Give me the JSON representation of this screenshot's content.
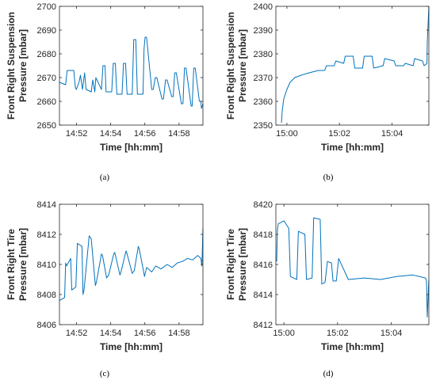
{
  "colors": {
    "series": "#0072BD",
    "axis": "#262626"
  },
  "chart_data": [
    {
      "id": "a",
      "type": "line",
      "caption": "(a)",
      "xlabel": "Time [hh:mm]",
      "ylabel_lines": [
        "Front Right Suspension",
        "Pressure [mbar]"
      ],
      "xlim": [
        14.85,
        14.99
      ],
      "ylim": [
        2650,
        2700
      ],
      "xticks": [
        {
          "v": 14.8667,
          "label": "14:52"
        },
        {
          "v": 14.9,
          "label": "14:54"
        },
        {
          "v": 14.9333,
          "label": "14:56"
        },
        {
          "v": 14.9667,
          "label": "14:58"
        }
      ],
      "yticks": [
        {
          "v": 2650,
          "label": "2650"
        },
        {
          "v": 2660,
          "label": "2660"
        },
        {
          "v": 2670,
          "label": "2670"
        },
        {
          "v": 2680,
          "label": "2680"
        },
        {
          "v": 2690,
          "label": "2690"
        },
        {
          "v": 2700,
          "label": "2700"
        }
      ],
      "series": [
        {
          "x": [
            14.85,
            14.856,
            14.8575,
            14.864,
            14.8655,
            14.8665,
            14.869,
            14.8705,
            14.8725,
            14.8745,
            14.876,
            14.881,
            14.8825,
            14.8845,
            14.8855,
            14.891,
            14.8925,
            14.8945,
            14.8955,
            14.901,
            14.9025,
            14.9045,
            14.906,
            14.911,
            14.9125,
            14.9145,
            14.916,
            14.921,
            14.9225,
            14.9245,
            14.926,
            14.9315,
            14.9325,
            14.9335,
            14.935,
            14.94,
            14.9415,
            14.9435,
            14.945,
            14.95,
            14.9515,
            14.9535,
            14.955,
            14.9595,
            14.961,
            14.9625,
            14.964,
            14.969,
            14.9705,
            14.972,
            14.9735,
            14.9785,
            14.9795,
            14.981,
            14.9825,
            14.9865,
            14.988,
            14.9885,
            14.99
          ],
          "y": [
            2668,
            2667,
            2673,
            2673,
            2666,
            2665,
            2668,
            2671,
            2665,
            2672,
            2665,
            2664,
            2669,
            2664,
            2670,
            2665,
            2675,
            2675,
            2664,
            2664,
            2676,
            2676,
            2663,
            2663,
            2676,
            2676,
            2663,
            2663,
            2686,
            2686,
            2663,
            2663,
            2682,
            2687,
            2687,
            2665,
            2665,
            2670,
            2670,
            2661,
            2661,
            2669,
            2669,
            2662,
            2662,
            2672,
            2672,
            2659,
            2659,
            2674,
            2674,
            2658,
            2658,
            2674,
            2674,
            2660,
            2660,
            2657,
            2659
          ]
        }
      ]
    },
    {
      "id": "b",
      "type": "line",
      "caption": "(b)",
      "xlabel": "Time [hh:mm]",
      "ylabel_lines": [
        "Front Right Suspension",
        "Pressure [mbar]"
      ],
      "xlim": [
        14.993,
        15.09
      ],
      "ylim": [
        2350,
        2400
      ],
      "xticks": [
        {
          "v": 15.0,
          "label": "15:00"
        },
        {
          "v": 15.0333,
          "label": "15:02"
        },
        {
          "v": 15.0667,
          "label": "15:04"
        }
      ],
      "yticks": [
        {
          "v": 2350,
          "label": "2350"
        },
        {
          "v": 2360,
          "label": "2360"
        },
        {
          "v": 2370,
          "label": "2370"
        },
        {
          "v": 2380,
          "label": "2380"
        },
        {
          "v": 2390,
          "label": "2390"
        },
        {
          "v": 2400,
          "label": "2400"
        }
      ],
      "series": [
        {
          "x": [
            14.9965,
            14.997,
            14.998,
            15.0,
            15.002,
            15.005,
            15.009,
            15.014,
            15.02,
            15.024,
            15.025,
            15.03,
            15.031,
            15.036,
            15.037,
            15.042,
            15.043,
            15.048,
            15.049,
            15.054,
            15.055,
            15.061,
            15.062,
            15.068,
            15.069,
            15.074,
            15.075,
            15.08,
            15.081,
            15.086,
            15.087,
            15.0888,
            15.089,
            15.09
          ],
          "y": [
            2351,
            2356,
            2361,
            2365,
            2368,
            2370,
            2371,
            2372,
            2373,
            2373,
            2375,
            2375,
            2377,
            2376,
            2379,
            2379,
            2374,
            2374,
            2379,
            2379,
            2374,
            2375,
            2378,
            2377,
            2375,
            2375,
            2376,
            2375,
            2378,
            2377,
            2375,
            2376,
            2385,
            2400
          ]
        }
      ]
    },
    {
      "id": "c",
      "type": "line",
      "caption": "(c)",
      "xlabel": "Time [hh:mm]",
      "ylabel_lines": [
        "Front Right Tire",
        "Pressure [mbar]"
      ],
      "xlim": [
        14.85,
        14.99
      ],
      "ylim": [
        8406,
        8414
      ],
      "xticks": [
        {
          "v": 14.8667,
          "label": "14:52"
        },
        {
          "v": 14.9,
          "label": "14:54"
        },
        {
          "v": 14.9333,
          "label": "14:56"
        },
        {
          "v": 14.9667,
          "label": "14:58"
        }
      ],
      "yticks": [
        {
          "v": 8406,
          "label": "8406"
        },
        {
          "v": 8408,
          "label": "8408"
        },
        {
          "v": 8410,
          "label": "8410"
        },
        {
          "v": 8412,
          "label": "8412"
        },
        {
          "v": 8414,
          "label": "8414"
        }
      ],
      "series": [
        {
          "x": [
            14.85,
            14.855,
            14.856,
            14.857,
            14.861,
            14.862,
            14.866,
            14.8675,
            14.872,
            14.873,
            14.874,
            14.879,
            14.881,
            14.885,
            14.886,
            14.891,
            14.892,
            14.896,
            14.898,
            14.903,
            14.904,
            14.909,
            14.91,
            14.915,
            14.916,
            14.921,
            14.923,
            14.927,
            14.928,
            14.933,
            14.935,
            14.94,
            14.944,
            14.949,
            14.955,
            14.96,
            14.965,
            14.97,
            14.975,
            14.98,
            14.985,
            14.988,
            14.989,
            14.99
          ],
          "y": [
            8407.6,
            8407.8,
            8410.1,
            8409.9,
            8410.4,
            8408.3,
            8408.5,
            8411.4,
            8411.2,
            8408.0,
            8408.3,
            8411.9,
            8411.7,
            8408.6,
            8408.8,
            8410.7,
            8410.6,
            8409.1,
            8409.3,
            8410.7,
            8410.8,
            8409.3,
            8409.5,
            8410.9,
            8410.7,
            8409.4,
            8409.6,
            8411.2,
            8411.0,
            8409.2,
            8409.8,
            8409.5,
            8409.9,
            8409.7,
            8410.0,
            8409.8,
            8410.1,
            8410.2,
            8410.4,
            8410.3,
            8410.6,
            8410.4,
            8409.9,
            8412.4
          ]
        }
      ]
    },
    {
      "id": "d",
      "type": "line",
      "caption": "(d)",
      "xlabel": "Time [hh:mm]",
      "ylabel_lines": [
        "Front Right Tire",
        "Pressure [mbar]"
      ],
      "xlim": [
        14.995,
        15.09
      ],
      "ylim": [
        8412,
        8420
      ],
      "xticks": [
        {
          "v": 15.0,
          "label": "15:00"
        },
        {
          "v": 15.0333,
          "label": "15:02"
        },
        {
          "v": 15.0667,
          "label": "15:04"
        }
      ],
      "yticks": [
        {
          "v": 8412,
          "label": "8412"
        },
        {
          "v": 8414,
          "label": "8414"
        },
        {
          "v": 8416,
          "label": "8416"
        },
        {
          "v": 8418,
          "label": "8418"
        },
        {
          "v": 8420,
          "label": "8420"
        }
      ],
      "series": [
        {
          "x": [
            14.9955,
            14.996,
            14.9965,
            15.0,
            15.003,
            15.004,
            15.008,
            15.009,
            15.013,
            15.014,
            15.0175,
            15.0185,
            15.0225,
            15.0235,
            15.0255,
            15.027,
            15.0295,
            15.0305,
            15.0325,
            15.034,
            15.04,
            15.05,
            15.06,
            15.07,
            15.08,
            15.088,
            15.0885,
            15.089,
            15.09
          ],
          "y": [
            8416.2,
            8418.3,
            8418.7,
            8418.9,
            8418.4,
            8415.2,
            8415.0,
            8418.2,
            8418.0,
            8415.0,
            8415.1,
            8419.1,
            8419.0,
            8414.7,
            8414.8,
            8416.2,
            8416.1,
            8414.9,
            8414.9,
            8416.4,
            8415.0,
            8415.1,
            8415.0,
            8415.2,
            8415.3,
            8415.1,
            8414.9,
            8412.5,
            8415.0
          ]
        }
      ]
    }
  ]
}
